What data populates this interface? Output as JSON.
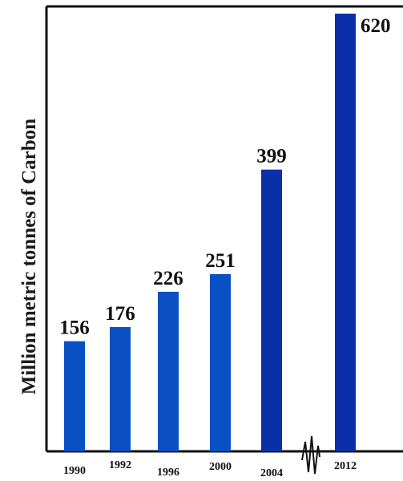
{
  "chart_data": {
    "type": "bar",
    "title": "",
    "xlabel": "",
    "ylabel": "Million metric tonnes of Carbon",
    "categories": [
      "1990",
      "1992",
      "1996",
      "2000",
      "2004",
      "2012"
    ],
    "values": [
      156,
      176,
      226,
      251,
      399,
      620
    ],
    "ylim": [
      0,
      640
    ],
    "grid": false,
    "legend": "none",
    "axis_break_between": [
      "2004",
      "2012"
    ],
    "colors": {
      "bar_default": "#0a4fc4",
      "bar_dark": "#0a2fa8",
      "axis": "#111111"
    },
    "bar_shades": [
      "default",
      "default",
      "default",
      "default",
      "dark",
      "dark"
    ]
  }
}
